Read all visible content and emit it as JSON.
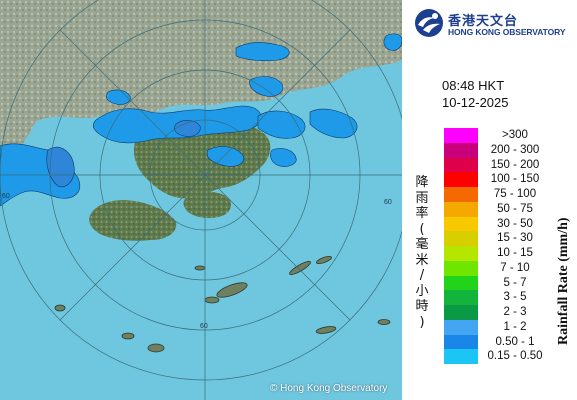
{
  "header": {
    "org_name_cn": "香港天文台",
    "org_name_en": "HONG KONG OBSERVATORY",
    "time": "08:48 HKT",
    "date": "10-12-2025"
  },
  "map": {
    "copyright": "© Hong Kong Observatory",
    "ring_labels": [
      "60",
      "60",
      "60"
    ],
    "colors": {
      "sea": "#6fc7df",
      "land": "#6f8a5a",
      "land_light": "#a8b7a0",
      "rain_light": "#1e9ae8",
      "rain_mid": "#2f86d8",
      "range_rings": "#3a6d7a"
    }
  },
  "legend": {
    "title_cn": [
      "降",
      "雨",
      "率",
      "(",
      "毫",
      "米",
      "/",
      "小",
      "時",
      ")"
    ],
    "title_en": "Rainfall Rate (mm/h)",
    "items": [
      {
        "label": ">300",
        "color": "#ff00ff"
      },
      {
        "label": "200 - 300",
        "color": "#c8007c"
      },
      {
        "label": "150 - 200",
        "color": "#e0004a"
      },
      {
        "label": "100 - 150",
        "color": "#ff0000"
      },
      {
        "label": "75 - 100",
        "color": "#f46a00"
      },
      {
        "label": "50 - 75",
        "color": "#f5a900"
      },
      {
        "label": "30 - 50",
        "color": "#f8c800"
      },
      {
        "label": "15 - 30",
        "color": "#d7cf00"
      },
      {
        "label": "10 - 15",
        "color": "#b4e600"
      },
      {
        "label": "7 - 10",
        "color": "#6ee600"
      },
      {
        "label": "5 - 7",
        "color": "#22d31c"
      },
      {
        "label": "3 - 5",
        "color": "#12b43c"
      },
      {
        "label": "2 - 3",
        "color": "#0a9a45"
      },
      {
        "label": "1 - 2",
        "color": "#44a6f2"
      },
      {
        "label": "0.50 - 1",
        "color": "#1a86e8"
      },
      {
        "label": "0.15 - 0.50",
        "color": "#1cc6f4"
      }
    ]
  }
}
